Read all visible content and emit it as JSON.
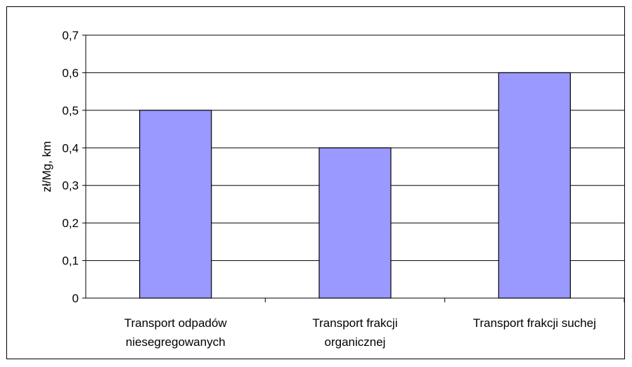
{
  "chart_data": {
    "type": "bar",
    "title": "",
    "xlabel": "",
    "ylabel": "zł/Mg, km",
    "categories": [
      [
        "Transport odpadów",
        "niesegregowanych"
      ],
      [
        "Transport frakcji",
        "organicznej"
      ],
      [
        "Transport frakcji suchej"
      ]
    ],
    "values": [
      0.5,
      0.4,
      0.6
    ],
    "ylim": [
      0,
      0.7
    ],
    "yticks": [
      {
        "value": 0,
        "label": "0"
      },
      {
        "value": 0.1,
        "label": "0,1"
      },
      {
        "value": 0.2,
        "label": "0,2"
      },
      {
        "value": 0.3,
        "label": "0,3"
      },
      {
        "value": 0.4,
        "label": "0,4"
      },
      {
        "value": 0.5,
        "label": "0,5"
      },
      {
        "value": 0.6,
        "label": "0,6"
      },
      {
        "value": 0.7,
        "label": "0,7"
      }
    ],
    "grid": true,
    "legend": "none",
    "colors": {
      "bar_fill": "#9999ff",
      "bar_stroke": "#000000",
      "grid": "#000000",
      "background": "#ffffff"
    }
  }
}
